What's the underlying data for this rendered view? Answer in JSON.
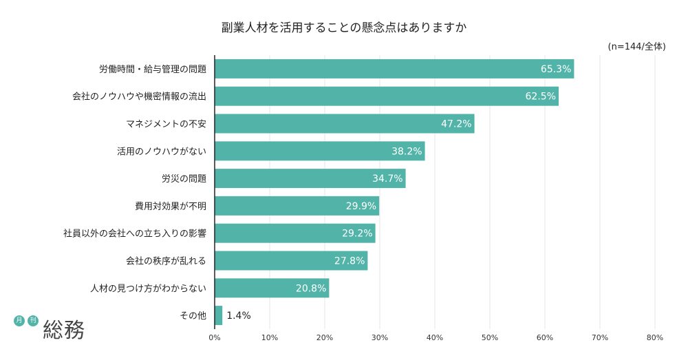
{
  "chart_data": {
    "type": "bar",
    "orientation": "horizontal",
    "title": "副業人材を活用することの懸念点はありますか",
    "note": "(n=144/全体)",
    "categories": [
      "労働時間・給与管理の問題",
      "会社のノウハウや機密情報の流出",
      "マネジメントの不安",
      "活用のノウハウがない",
      "労災の問題",
      "費用対効果が不明",
      "社員以外の会社への立ち入りの影響",
      "会社の秩序が乱れる",
      "人材の見つけ方がわからない",
      "その他"
    ],
    "values": [
      65.3,
      62.5,
      47.2,
      38.2,
      34.7,
      29.9,
      29.2,
      27.8,
      20.8,
      1.4
    ],
    "value_labels": [
      "65.3%",
      "62.5%",
      "47.2%",
      "38.2%",
      "34.7%",
      "29.9%",
      "29.2%",
      "27.8%",
      "20.8%",
      "1.4%"
    ],
    "xlim": [
      0,
      80
    ],
    "xticks": [
      "0%",
      "10%",
      "20%",
      "30%",
      "40%",
      "50%",
      "60%",
      "70%",
      "80%"
    ],
    "grid": "vertical",
    "bar_color": "#52b4a8"
  },
  "logo": {
    "badge1": "月",
    "badge2": "刊",
    "mark": "総務"
  }
}
